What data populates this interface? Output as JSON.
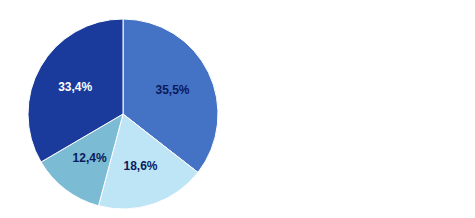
{
  "chart_data": {
    "type": "pie",
    "values": [
      35.5,
      18.6,
      12.4,
      33.4
    ],
    "value_labels": [
      "35,5%",
      "18,6%",
      "12,4%",
      "33,4%"
    ],
    "colors": [
      "#4472C4",
      "#BEE5F5",
      "#7BBBD4",
      "#1A3A9C"
    ],
    "data_labels": true
  }
}
